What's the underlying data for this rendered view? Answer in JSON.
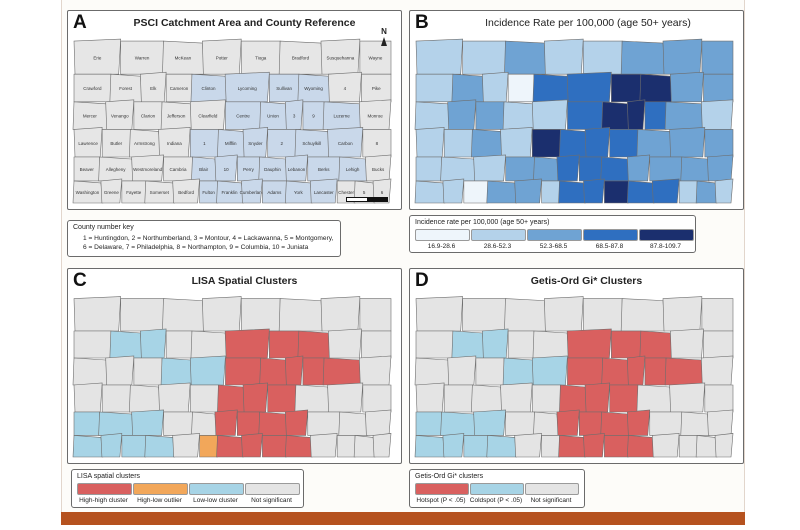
{
  "panels": {
    "a": {
      "letter": "A",
      "title": "PSCI  Catchment Area and County Reference",
      "north_label": "N"
    },
    "b": {
      "letter": "B",
      "title": "Incidence Rate per 100,000 (age 50+ years)"
    },
    "c": {
      "letter": "C",
      "title": "LISA Spatial Clusters"
    },
    "d": {
      "letter": "D",
      "title": "Getis-Ord Gi* Clusters"
    }
  },
  "county_key": {
    "title": "County number key",
    "line1": "1 = Huntingdon, 2 = Northumberland, 3 = Montour, 4 = Lackawanna, 5 = Montgomery,",
    "line2": "6 = Delaware, 7 = Philadelphia, 8 = Northampton, 9 = Columbia, 10 = Juniata"
  },
  "incidence_legend": {
    "title": "Incidence rate per 100,000 (age 50+ years)",
    "classes": [
      {
        "label": "16.9-28.6",
        "color": "#eef5fb"
      },
      {
        "label": "28.6-52.3",
        "color": "#b4d2ea"
      },
      {
        "label": "52.3-68.5",
        "color": "#6fa3d3"
      },
      {
        "label": "68.5-87.8",
        "color": "#2f6fc0"
      },
      {
        "label": "87.8-109.7",
        "color": "#1b2f6e"
      }
    ]
  },
  "lisa_legend": {
    "title": "LISA spatial clusters",
    "classes": [
      {
        "label": "High-high cluster",
        "color": "#d9605f"
      },
      {
        "label": "High-low outlier",
        "color": "#f2a75a"
      },
      {
        "label": "Low-low cluster",
        "color": "#a7d4e6"
      },
      {
        "label": "Not significant",
        "color": "#e4e4e4"
      }
    ]
  },
  "gi_legend": {
    "title": "Getis-Ord Gi* clusters",
    "classes": [
      {
        "label": "Hotspot (P < .05)",
        "color": "#d9605f"
      },
      {
        "label": "Coldspot (P < .05)",
        "color": "#a7d4e6"
      },
      {
        "label": "Not significant",
        "color": "#e4e4e4"
      }
    ]
  },
  "catchment_colors": {
    "in": "#c9d8ea",
    "out": "#e6e6e6"
  },
  "counties": [
    {
      "name": "Erie",
      "catchment": false,
      "inc": 1,
      "lisa": 3,
      "gi": 2
    },
    {
      "name": "Warren",
      "catchment": false,
      "inc": 1,
      "lisa": 3,
      "gi": 2
    },
    {
      "name": "McKean",
      "catchment": false,
      "inc": 2,
      "lisa": 3,
      "gi": 2
    },
    {
      "name": "Potter",
      "catchment": false,
      "inc": 1,
      "lisa": 3,
      "gi": 2
    },
    {
      "name": "Tioga",
      "catchment": false,
      "inc": 1,
      "lisa": 3,
      "gi": 2
    },
    {
      "name": "Bradford",
      "catchment": false,
      "inc": 2,
      "lisa": 3,
      "gi": 2
    },
    {
      "name": "Susquehanna",
      "catchment": false,
      "inc": 2,
      "lisa": 3,
      "gi": 2
    },
    {
      "name": "Wayne",
      "catchment": false,
      "inc": 2,
      "lisa": 3,
      "gi": 2
    },
    {
      "name": "Crawford",
      "catchment": false,
      "inc": 1,
      "lisa": 3,
      "gi": 2
    },
    {
      "name": "Forest",
      "catchment": false,
      "inc": 2,
      "lisa": 2,
      "gi": 1
    },
    {
      "name": "Elk",
      "catchment": false,
      "inc": 1,
      "lisa": 2,
      "gi": 1
    },
    {
      "name": "Cameron",
      "catchment": false,
      "inc": 0,
      "lisa": 3,
      "gi": 2
    },
    {
      "name": "Clinton",
      "catchment": true,
      "inc": 3,
      "lisa": 3,
      "gi": 2
    },
    {
      "name": "Lycoming",
      "catchment": true,
      "inc": 3,
      "lisa": 0,
      "gi": 0
    },
    {
      "name": "Sullivan",
      "catchment": true,
      "inc": 4,
      "lisa": 0,
      "gi": 0
    },
    {
      "name": "Wyoming",
      "catchment": true,
      "inc": 4,
      "lisa": 0,
      "gi": 0
    },
    {
      "name": "Lackawanna",
      "catchment": false,
      "inc": 2,
      "lisa": 3,
      "gi": 2
    },
    {
      "name": "Pike",
      "catchment": false,
      "inc": 2,
      "lisa": 3,
      "gi": 2
    },
    {
      "name": "Mercer",
      "catchment": false,
      "inc": 1,
      "lisa": 3,
      "gi": 2
    },
    {
      "name": "Venango",
      "catchment": false,
      "inc": 2,
      "lisa": 3,
      "gi": 2
    },
    {
      "name": "Clarion",
      "catchment": false,
      "inc": 2,
      "lisa": 3,
      "gi": 2
    },
    {
      "name": "Jefferson",
      "catchment": false,
      "inc": 1,
      "lisa": 2,
      "gi": 1
    },
    {
      "name": "Clearfield",
      "catchment": false,
      "inc": 1,
      "lisa": 2,
      "gi": 1
    },
    {
      "name": "Centre",
      "catchment": true,
      "inc": 3,
      "lisa": 0,
      "gi": 0
    },
    {
      "name": "Union",
      "catchment": true,
      "inc": 4,
      "lisa": 0,
      "gi": 0
    },
    {
      "name": "Montour",
      "catchment": true,
      "inc": 4,
      "lisa": 0,
      "gi": 0
    },
    {
      "name": "Columbia",
      "catchment": true,
      "inc": 3,
      "lisa": 0,
      "gi": 0
    },
    {
      "name": "Luzerne",
      "catchment": true,
      "inc": 2,
      "lisa": 0,
      "gi": 0
    },
    {
      "name": "Monroe",
      "catchment": false,
      "inc": 1,
      "lisa": 3,
      "gi": 2
    },
    {
      "name": "Lawrence",
      "catchment": false,
      "inc": 1,
      "lisa": 3,
      "gi": 2
    },
    {
      "name": "Butler",
      "catchment": false,
      "inc": 1,
      "lisa": 3,
      "gi": 2
    },
    {
      "name": "Armstrong",
      "catchment": false,
      "inc": 2,
      "lisa": 3,
      "gi": 2
    },
    {
      "name": "Indiana",
      "catchment": false,
      "inc": 1,
      "lisa": 3,
      "gi": 2
    },
    {
      "name": "Huntingdon",
      "catchment": true,
      "inc": 4,
      "lisa": 3,
      "gi": 2
    },
    {
      "name": "Mifflin",
      "catchment": true,
      "inc": 3,
      "lisa": 0,
      "gi": 0
    },
    {
      "name": "Snyder",
      "catchment": true,
      "inc": 3,
      "lisa": 0,
      "gi": 0
    },
    {
      "name": "Northumberland",
      "catchment": true,
      "inc": 3,
      "lisa": 0,
      "gi": 0
    },
    {
      "name": "Schuylkill",
      "catchment": true,
      "inc": 2,
      "lisa": 3,
      "gi": 2
    },
    {
      "name": "Carbon",
      "catchment": true,
      "inc": 2,
      "lisa": 3,
      "gi": 2
    },
    {
      "name": "Northampton",
      "catchment": false,
      "inc": 2,
      "lisa": 3,
      "gi": 2
    },
    {
      "name": "Beaver",
      "catchment": false,
      "inc": 1,
      "lisa": 2,
      "gi": 1
    },
    {
      "name": "Allegheny",
      "catchment": false,
      "inc": 1,
      "lisa": 2,
      "gi": 1
    },
    {
      "name": "Westmoreland",
      "catchment": false,
      "inc": 1,
      "lisa": 2,
      "gi": 1
    },
    {
      "name": "Cambria",
      "catchment": false,
      "inc": 2,
      "lisa": 3,
      "gi": 2
    },
    {
      "name": "Blair",
      "catchment": true,
      "inc": 2,
      "lisa": 3,
      "gi": 2
    },
    {
      "name": "Juniata",
      "catchment": true,
      "inc": 3,
      "lisa": 0,
      "gi": 0
    },
    {
      "name": "Perry",
      "catchment": true,
      "inc": 3,
      "lisa": 0,
      "gi": 0
    },
    {
      "name": "Dauphin",
      "catchment": true,
      "inc": 3,
      "lisa": 0,
      "gi": 0
    },
    {
      "name": "Lebanon",
      "catchment": true,
      "inc": 2,
      "lisa": 0,
      "gi": 0
    },
    {
      "name": "Berks",
      "catchment": true,
      "inc": 2,
      "lisa": 3,
      "gi": 2
    },
    {
      "name": "Lehigh",
      "catchment": true,
      "inc": 2,
      "lisa": 3,
      "gi": 2
    },
    {
      "name": "Bucks",
      "catchment": false,
      "inc": 2,
      "lisa": 3,
      "gi": 2
    },
    {
      "name": "Washington",
      "catchment": false,
      "inc": 1,
      "lisa": 2,
      "gi": 1
    },
    {
      "name": "Greene",
      "catchment": false,
      "inc": 1,
      "lisa": 2,
      "gi": 1
    },
    {
      "name": "Fayette",
      "catchment": false,
      "inc": 0,
      "lisa": 2,
      "gi": 1
    },
    {
      "name": "Somerset",
      "catchment": false,
      "inc": 2,
      "lisa": 2,
      "gi": 1
    },
    {
      "name": "Bedford",
      "catchment": false,
      "inc": 2,
      "lisa": 3,
      "gi": 2
    },
    {
      "name": "Fulton",
      "catchment": true,
      "inc": 1,
      "lisa": 1,
      "gi": 2
    },
    {
      "name": "Franklin",
      "catchment": true,
      "inc": 3,
      "lisa": 0,
      "gi": 0
    },
    {
      "name": "Cumberland",
      "catchment": true,
      "inc": 3,
      "lisa": 0,
      "gi": 0
    },
    {
      "name": "Adams",
      "catchment": true,
      "inc": 4,
      "lisa": 0,
      "gi": 0
    },
    {
      "name": "York",
      "catchment": true,
      "inc": 3,
      "lisa": 0,
      "gi": 0
    },
    {
      "name": "Lancaster",
      "catchment": true,
      "inc": 3,
      "lisa": 3,
      "gi": 2
    },
    {
      "name": "Chester",
      "catchment": false,
      "inc": 1,
      "lisa": 3,
      "gi": 2
    },
    {
      "name": "Montgomery",
      "catchment": false,
      "inc": 2,
      "lisa": 3,
      "gi": 2
    },
    {
      "name": "Delaware",
      "catchment": false,
      "inc": 1,
      "lisa": 3,
      "gi": 2
    },
    {
      "name": "Philadelphia",
      "catchment": false,
      "inc": 0,
      "lisa": 3,
      "gi": 2
    }
  ],
  "number_labels": {
    "Huntingdon": "1",
    "Northumberland": "2",
    "Montour": "3",
    "Lackawanna": "4",
    "Montgomery": "5",
    "Delaware": "6",
    "Philadelphia": "7",
    "Northampton": "8",
    "Columbia": "9",
    "Juniata": "10"
  }
}
